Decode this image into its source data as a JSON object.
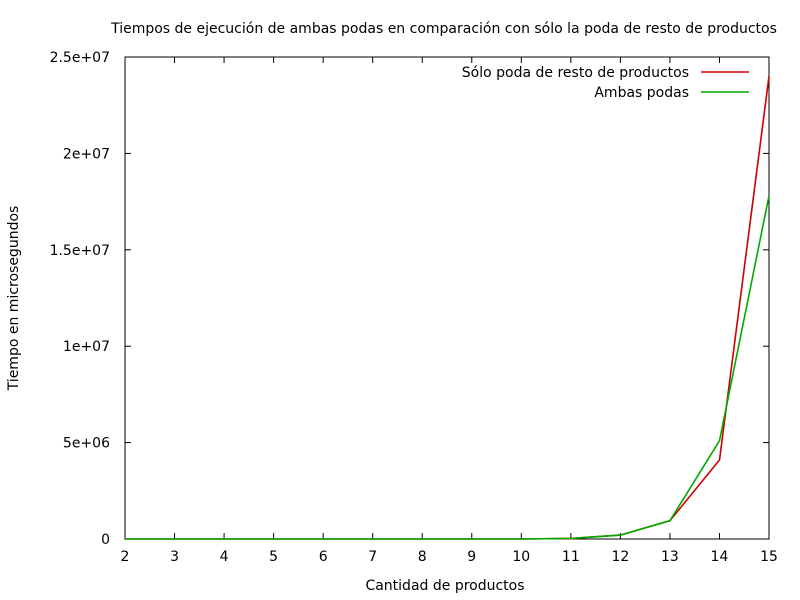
{
  "chart_data": {
    "type": "line",
    "title": "Tiempos de ejecución de ambas podas en comparación con sólo la poda de resto de productos",
    "xlabel": "Cantidad de productos",
    "ylabel": "Tiempo en microsegundos",
    "xlim": [
      2,
      15
    ],
    "ylim": [
      0,
      25000000
    ],
    "x_ticks": [
      2,
      3,
      4,
      5,
      6,
      7,
      8,
      9,
      10,
      11,
      12,
      13,
      14,
      15
    ],
    "y_ticks": [
      0,
      5000000,
      10000000,
      15000000,
      20000000,
      25000000
    ],
    "y_tick_labels": [
      "0",
      "5e+06",
      "1e+07",
      "1.5e+07",
      "2e+07",
      "2.5e+07"
    ],
    "grid": false,
    "legend_position": "top-right",
    "x": [
      2,
      3,
      4,
      5,
      6,
      7,
      8,
      9,
      10,
      11,
      12,
      13,
      14,
      15
    ],
    "series": [
      {
        "name": "Sólo poda de resto de productos",
        "color": "#cc0000",
        "values": [
          0,
          0,
          0,
          0,
          0,
          0,
          0,
          0,
          0,
          30000,
          200000,
          950000,
          4100000,
          24000000
        ]
      },
      {
        "name": "Ambas podas",
        "color": "#00aa00",
        "values": [
          0,
          0,
          0,
          0,
          0,
          0,
          0,
          0,
          0,
          30000,
          200000,
          950000,
          5100000,
          17800000
        ]
      }
    ]
  }
}
